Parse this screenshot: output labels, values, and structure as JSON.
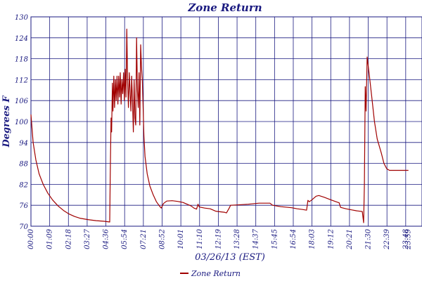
{
  "chart_data": {
    "type": "line",
    "title": "Zone Return",
    "xlabel": "03/26/13 (EST)",
    "ylabel": "Degrees F",
    "ylim": [
      70,
      130
    ],
    "yticks": [
      70,
      76,
      82,
      88,
      94,
      100,
      106,
      112,
      118,
      124,
      130
    ],
    "xlim": [
      0,
      1440
    ],
    "xticks": [
      {
        "label": "00:00",
        "minutes": 0
      },
      {
        "label": "01:09",
        "minutes": 69
      },
      {
        "label": "02:18",
        "minutes": 138
      },
      {
        "label": "03:27",
        "minutes": 207
      },
      {
        "label": "04:36",
        "minutes": 276
      },
      {
        "label": "05:54",
        "minutes": 345
      },
      {
        "label": "07:21",
        "minutes": 414
      },
      {
        "label": "08:52",
        "minutes": 483
      },
      {
        "label": "10:01",
        "minutes": 552
      },
      {
        "label": "11:10",
        "minutes": 621
      },
      {
        "label": "12:19",
        "minutes": 690
      },
      {
        "label": "13:28",
        "minutes": 759
      },
      {
        "label": "14:37",
        "minutes": 828
      },
      {
        "label": "15:45",
        "minutes": 897
      },
      {
        "label": "16:54",
        "minutes": 966
      },
      {
        "label": "18:03",
        "minutes": 1035
      },
      {
        "label": "19:12",
        "minutes": 1104
      },
      {
        "label": "20:21",
        "minutes": 1173
      },
      {
        "label": "21:30",
        "minutes": 1242
      },
      {
        "label": "22:39",
        "minutes": 1311
      },
      {
        "label": "23:48",
        "minutes": 1380
      },
      {
        "label": "23:59",
        "minutes": 1390
      }
    ],
    "grid": true,
    "legend_position": "bottom-center",
    "series": [
      {
        "name": "Zone Return",
        "color": "#a00000",
        "points": [
          [
            0,
            102
          ],
          [
            8,
            94
          ],
          [
            18,
            89
          ],
          [
            30,
            85
          ],
          [
            45,
            82
          ],
          [
            62,
            79.5
          ],
          [
            80,
            77.5
          ],
          [
            100,
            75.8
          ],
          [
            120,
            74.5
          ],
          [
            140,
            73.5
          ],
          [
            160,
            72.8
          ],
          [
            180,
            72.3
          ],
          [
            210,
            71.9
          ],
          [
            240,
            71.6
          ],
          [
            270,
            71.4
          ],
          [
            290,
            71.2
          ],
          [
            292,
            84
          ],
          [
            295,
            101
          ],
          [
            297,
            97
          ],
          [
            300,
            111
          ],
          [
            302,
            103
          ],
          [
            305,
            113
          ],
          [
            308,
            104
          ],
          [
            311,
            112
          ],
          [
            314,
            106
          ],
          [
            317,
            113
          ],
          [
            320,
            105
          ],
          [
            323,
            113
          ],
          [
            326,
            107
          ],
          [
            329,
            114
          ],
          [
            332,
            105
          ],
          [
            335,
            112
          ],
          [
            338,
            108
          ],
          [
            341,
            114
          ],
          [
            344,
            106
          ],
          [
            347,
            115
          ],
          [
            350,
            107
          ],
          [
            353,
            126.5
          ],
          [
            356,
            111
          ],
          [
            359,
            104
          ],
          [
            362,
            114
          ],
          [
            365,
            109
          ],
          [
            368,
            103
          ],
          [
            371,
            113
          ],
          [
            374,
            106
          ],
          [
            377,
            97
          ],
          [
            380,
            112
          ],
          [
            383,
            101
          ],
          [
            386,
            99
          ],
          [
            389,
            124
          ],
          [
            392,
            109
          ],
          [
            395,
            104
          ],
          [
            398,
            114
          ],
          [
            401,
            99
          ],
          [
            404,
            122
          ],
          [
            407,
            116
          ],
          [
            410,
            112
          ],
          [
            413,
            104
          ],
          [
            416,
            96
          ],
          [
            420,
            90
          ],
          [
            428,
            85
          ],
          [
            438,
            81.5
          ],
          [
            450,
            79
          ],
          [
            462,
            77
          ],
          [
            475,
            75.6
          ],
          [
            480,
            75.2
          ],
          [
            488,
            76.5
          ],
          [
            500,
            77.2
          ],
          [
            520,
            77.3
          ],
          [
            540,
            77.1
          ],
          [
            560,
            76.8
          ],
          [
            575,
            76.3
          ],
          [
            590,
            75.8
          ],
          [
            600,
            75.2
          ],
          [
            610,
            74.9
          ],
          [
            615,
            76.3
          ],
          [
            620,
            75.5
          ],
          [
            640,
            75.2
          ],
          [
            660,
            75.0
          ],
          [
            680,
            74.3
          ],
          [
            700,
            74.1
          ],
          [
            712,
            74.0
          ],
          [
            720,
            73.8
          ],
          [
            730,
            75.2
          ],
          [
            735,
            76.0
          ],
          [
            760,
            76.1
          ],
          [
            800,
            76.3
          ],
          [
            840,
            76.6
          ],
          [
            880,
            76.6
          ],
          [
            890,
            76.0
          ],
          [
            920,
            75.6
          ],
          [
            960,
            75.3
          ],
          [
            980,
            75.0
          ],
          [
            1000,
            74.8
          ],
          [
            1015,
            74.6
          ],
          [
            1020,
            77.4
          ],
          [
            1025,
            77.0
          ],
          [
            1035,
            77.6
          ],
          [
            1050,
            78.6
          ],
          [
            1060,
            78.8
          ],
          [
            1080,
            78.3
          ],
          [
            1100,
            77.7
          ],
          [
            1120,
            77.1
          ],
          [
            1135,
            76.7
          ],
          [
            1140,
            75.4
          ],
          [
            1160,
            75.0
          ],
          [
            1180,
            74.7
          ],
          [
            1200,
            74.4
          ],
          [
            1220,
            74.2
          ],
          [
            1225,
            71
          ],
          [
            1228,
            82
          ],
          [
            1231,
            110
          ],
          [
            1234,
            103
          ],
          [
            1238,
            118.5
          ],
          [
            1245,
            114
          ],
          [
            1255,
            107
          ],
          [
            1265,
            100
          ],
          [
            1275,
            95
          ],
          [
            1290,
            91
          ],
          [
            1300,
            88
          ],
          [
            1310,
            86.5
          ],
          [
            1320,
            86
          ],
          [
            1340,
            86
          ],
          [
            1360,
            86
          ],
          [
            1380,
            86
          ],
          [
            1390,
            86
          ]
        ]
      }
    ]
  }
}
